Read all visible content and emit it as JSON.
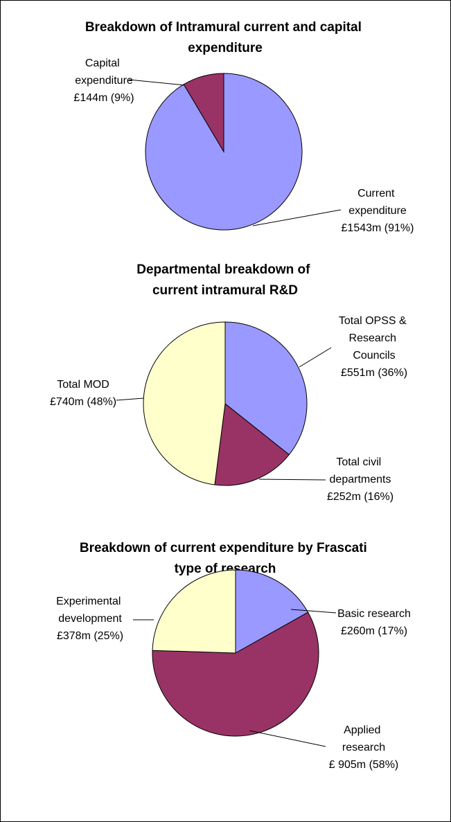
{
  "chart_data": [
    {
      "type": "pie",
      "title": "Breakdown of Intramural current and capital expenditure",
      "categories": [
        "Current expenditure",
        "Capital expenditure"
      ],
      "values": [
        1543,
        144
      ],
      "value_labels": [
        "£1543m (91%)",
        "£144m (9%)"
      ],
      "colors": [
        "#9999ff",
        "#993366"
      ]
    },
    {
      "type": "pie",
      "title": "Departmental breakdown of current intramural R&D",
      "categories": [
        "Total OPSS & Research Councils",
        "Total civil departments",
        "Total MOD"
      ],
      "values": [
        551,
        252,
        740
      ],
      "value_labels": [
        "£551m (36%)",
        "£252m (16%)",
        "£740m (48%)"
      ],
      "colors": [
        "#9999ff",
        "#993366",
        "#ffffcc"
      ]
    },
    {
      "type": "pie",
      "title": "Breakdown of current expenditure by Frascati type of research",
      "categories": [
        "Basic research",
        "Applied research",
        "Experimental development"
      ],
      "values": [
        260,
        905,
        378
      ],
      "value_labels": [
        "£260m (17%)",
        "£ 905m (58%)",
        "£378m (25%)"
      ],
      "colors": [
        "#9999ff",
        "#993366",
        "#ffffcc"
      ]
    }
  ]
}
